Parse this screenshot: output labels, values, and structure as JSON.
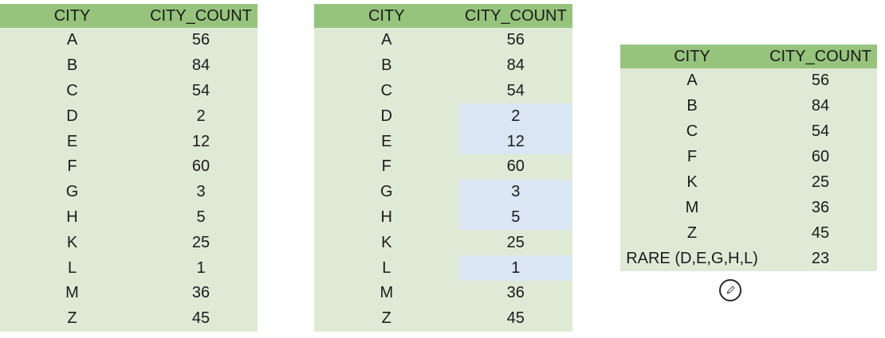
{
  "headers": {
    "city": "CITY",
    "count": "CITY_COUNT"
  },
  "colors": {
    "header_bg": "#96c47c",
    "cell_bg": "#dfead6",
    "highlight_bg": "#dae6f4"
  },
  "table1": {
    "rows": [
      {
        "city": "A",
        "count": "56"
      },
      {
        "city": "B",
        "count": "84"
      },
      {
        "city": "C",
        "count": "54"
      },
      {
        "city": "D",
        "count": "2"
      },
      {
        "city": "E",
        "count": "12"
      },
      {
        "city": "F",
        "count": "60"
      },
      {
        "city": "G",
        "count": "3"
      },
      {
        "city": "H",
        "count": "5"
      },
      {
        "city": "K",
        "count": "25"
      },
      {
        "city": "L",
        "count": "1"
      },
      {
        "city": "M",
        "count": "36"
      },
      {
        "city": "Z",
        "count": "45"
      }
    ]
  },
  "table2": {
    "rows": [
      {
        "city": "A",
        "count": "56",
        "highlighted": false
      },
      {
        "city": "B",
        "count": "84",
        "highlighted": false
      },
      {
        "city": "C",
        "count": "54",
        "highlighted": false
      },
      {
        "city": "D",
        "count": "2",
        "highlighted": true
      },
      {
        "city": "E",
        "count": "12",
        "highlighted": true
      },
      {
        "city": "F",
        "count": "60",
        "highlighted": false
      },
      {
        "city": "G",
        "count": "3",
        "highlighted": true
      },
      {
        "city": "H",
        "count": "5",
        "highlighted": true
      },
      {
        "city": "K",
        "count": "25",
        "highlighted": false
      },
      {
        "city": "L",
        "count": "1",
        "highlighted": true
      },
      {
        "city": "M",
        "count": "36",
        "highlighted": false
      },
      {
        "city": "Z",
        "count": "45",
        "highlighted": false
      }
    ]
  },
  "table3": {
    "rows": [
      {
        "city": "A",
        "count": "56"
      },
      {
        "city": "B",
        "count": "84"
      },
      {
        "city": "C",
        "count": "54"
      },
      {
        "city": "F",
        "count": "60"
      },
      {
        "city": "K",
        "count": "25"
      },
      {
        "city": "M",
        "count": "36"
      },
      {
        "city": "Z",
        "count": "45"
      },
      {
        "city": "RARE (D,E,G,H,L)",
        "count": "23"
      }
    ]
  },
  "cursor": {
    "icon": "pencil-cursor-icon"
  }
}
